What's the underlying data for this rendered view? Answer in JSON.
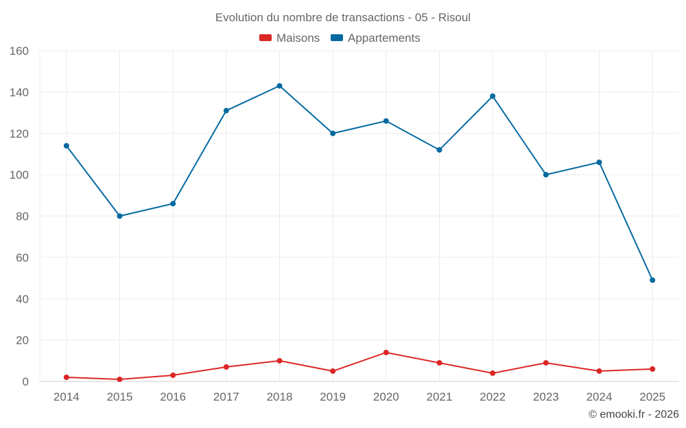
{
  "chart_data": {
    "type": "line",
    "title": "Evolution du nombre de transactions - 05 - Risoul",
    "categories": [
      "2014",
      "2015",
      "2016",
      "2017",
      "2018",
      "2019",
      "2020",
      "2021",
      "2022",
      "2023",
      "2024",
      "2025"
    ],
    "series": [
      {
        "name": "Maisons",
        "color": "#dc2626",
        "values": [
          2,
          1,
          3,
          7,
          10,
          5,
          14,
          9,
          4,
          9,
          5,
          6
        ]
      },
      {
        "name": "Appartements",
        "color": "#0369a1",
        "values": [
          114,
          80,
          86,
          131,
          143,
          120,
          126,
          112,
          138,
          100,
          106,
          49
        ]
      }
    ],
    "ylim": [
      0,
      160
    ],
    "yticks": [
      0,
      20,
      40,
      60,
      80,
      100,
      120,
      140,
      160
    ],
    "xlabel": "",
    "ylabel": "",
    "grid": true,
    "legend": "top-center"
  },
  "credit": "© emooki.fr - 2026"
}
